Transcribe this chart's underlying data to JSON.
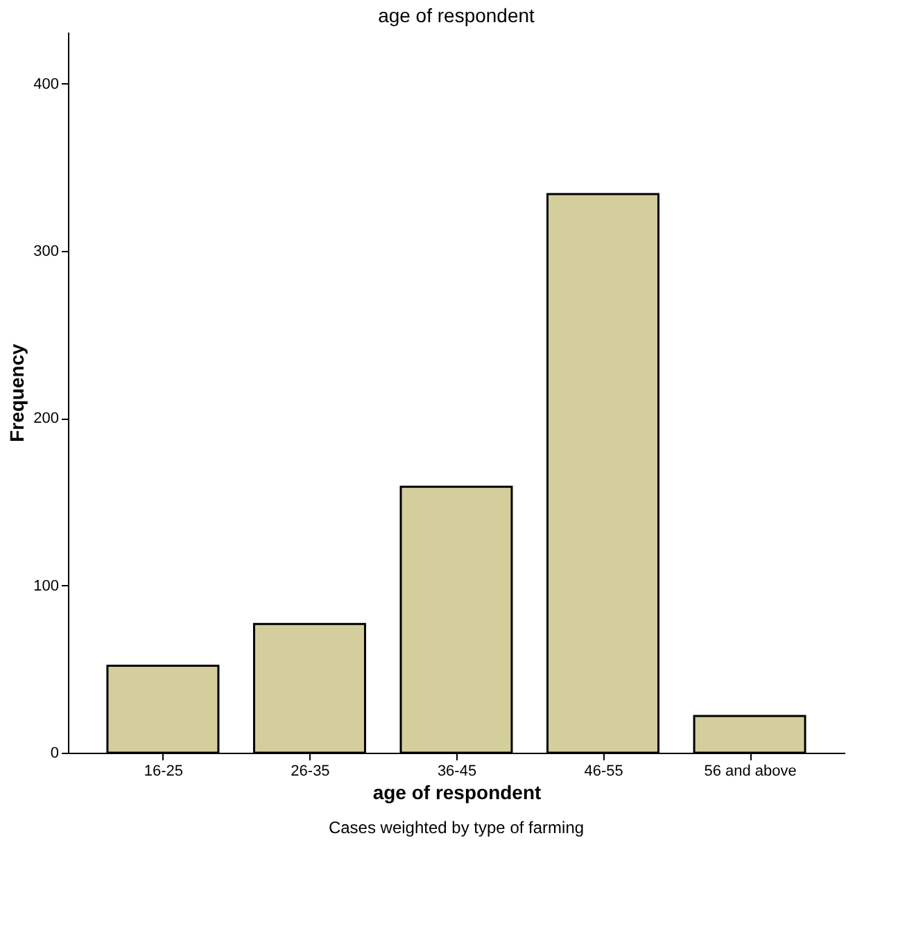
{
  "chart_data": {
    "type": "bar",
    "title": "age of respondent",
    "xlabel": "age of respondent",
    "ylabel": "Frequency",
    "categories": [
      "16-25",
      "26-35",
      "36-45",
      "46-55",
      "56 and above"
    ],
    "values": [
      52,
      77,
      159,
      334,
      22
    ],
    "color": "#d3ce9c",
    "ylim": [
      0,
      431
    ],
    "yticks": [
      0,
      100,
      200,
      300,
      400
    ],
    "grid": false,
    "annotations": [
      "Cases weighted by type of farming"
    ]
  }
}
